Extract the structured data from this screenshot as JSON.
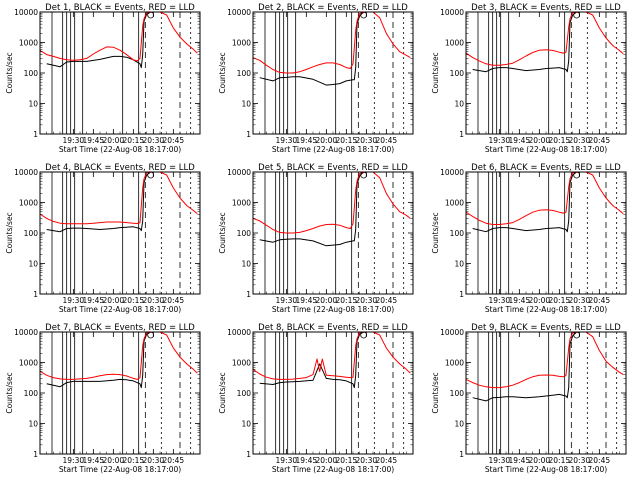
{
  "colors": {
    "events": "#000000",
    "lld": "#ff0000",
    "background": "#ffffff",
    "axes": "#000000"
  },
  "common": {
    "xlabel": "Start Time (22-Aug-08 18:17:00)",
    "ylabel": "Counts/sec",
    "x_ticks": [
      "19:30",
      "19:45",
      "20:00",
      "20:15",
      "20:30",
      "20:45"
    ],
    "y_ticks": [
      "1",
      "10",
      "100",
      "1000",
      "10000"
    ],
    "x_range_min": [
      1145,
      1265
    ],
    "y_range": [
      1,
      10000
    ],
    "y_scale": "log"
  },
  "chart_data": [
    {
      "type": "line",
      "title": "Det 1, BLACK = Events, RED = LLD",
      "series": [
        {
          "name": "Events",
          "x": [
            1150,
            1160,
            1165,
            1170,
            1175,
            1180,
            1190,
            1200,
            1205,
            1210,
            1215,
            1220,
            1221,
            1222,
            1223,
            1225,
            1228,
            1230,
            1232,
            1234
          ],
          "y": [
            200,
            160,
            230,
            240,
            240,
            240,
            280,
            350,
            350,
            330,
            270,
            200,
            150,
            400,
            5000,
            8500,
            10000,
            10000,
            10000,
            10000
          ]
        },
        {
          "name": "LLD",
          "x": [
            1145,
            1150,
            1155,
            1160,
            1165,
            1170,
            1175,
            1180,
            1185,
            1190,
            1195,
            1200,
            1205,
            1210,
            1215,
            1218,
            1220,
            1222,
            1223,
            1225,
            1230,
            1235,
            1240,
            1245,
            1250,
            1255,
            1260,
            1263
          ],
          "y": [
            550,
            400,
            350,
            300,
            270,
            260,
            270,
            300,
            420,
            560,
            720,
            700,
            560,
            400,
            270,
            250,
            300,
            3500,
            6000,
            9500,
            10000,
            10000,
            8000,
            3000,
            1500,
            900,
            600,
            450
          ]
        }
      ]
    },
    {
      "type": "line",
      "title": "Det 2, BLACK = Events, RED = LLD",
      "series": [
        {
          "name": "Events",
          "x": [
            1150,
            1160,
            1165,
            1170,
            1175,
            1180,
            1190,
            1200,
            1205,
            1210,
            1215,
            1220,
            1221,
            1222,
            1223,
            1225,
            1228,
            1230,
            1232,
            1234
          ],
          "y": [
            70,
            55,
            70,
            72,
            75,
            75,
            62,
            40,
            42,
            45,
            55,
            60,
            60,
            150,
            4000,
            7500,
            10000,
            10000,
            10000,
            10000
          ]
        },
        {
          "name": "LLD",
          "x": [
            1145,
            1150,
            1155,
            1160,
            1165,
            1170,
            1175,
            1180,
            1185,
            1190,
            1195,
            1200,
            1205,
            1210,
            1215,
            1218,
            1220,
            1222,
            1223,
            1225,
            1230,
            1235,
            1240,
            1245,
            1250,
            1255,
            1260,
            1263
          ],
          "y": [
            320,
            260,
            180,
            130,
            105,
            100,
            100,
            110,
            130,
            160,
            190,
            215,
            215,
            190,
            150,
            140,
            200,
            2500,
            5000,
            9000,
            10000,
            10000,
            6500,
            2000,
            900,
            500,
            380,
            320
          ]
        }
      ]
    },
    {
      "type": "line",
      "title": "Det 3, BLACK = Events, RED = LLD",
      "series": [
        {
          "name": "Events",
          "x": [
            1150,
            1160,
            1165,
            1170,
            1175,
            1180,
            1190,
            1200,
            1205,
            1210,
            1215,
            1220,
            1221,
            1222,
            1223,
            1225,
            1228,
            1230,
            1232,
            1234
          ],
          "y": [
            130,
            110,
            140,
            150,
            150,
            140,
            120,
            130,
            140,
            145,
            150,
            130,
            110,
            250,
            4500,
            8000,
            10000,
            10000,
            10000,
            10000
          ]
        },
        {
          "name": "LLD",
          "x": [
            1145,
            1150,
            1155,
            1160,
            1165,
            1170,
            1175,
            1180,
            1185,
            1190,
            1195,
            1200,
            1205,
            1210,
            1215,
            1218,
            1220,
            1222,
            1223,
            1225,
            1230,
            1235,
            1240,
            1245,
            1250,
            1255,
            1260,
            1263
          ],
          "y": [
            450,
            320,
            250,
            200,
            180,
            180,
            190,
            210,
            270,
            360,
            470,
            560,
            580,
            550,
            480,
            450,
            480,
            3200,
            6000,
            9500,
            10000,
            10000,
            8000,
            3000,
            1400,
            800,
            550,
            430
          ]
        }
      ]
    },
    {
      "type": "line",
      "title": "Det 4, BLACK = Events, RED = LLD",
      "series": [
        {
          "name": "Events",
          "x": [
            1150,
            1160,
            1165,
            1170,
            1175,
            1180,
            1190,
            1200,
            1205,
            1210,
            1215,
            1220,
            1221,
            1222,
            1223,
            1225,
            1228,
            1230,
            1232,
            1234
          ],
          "y": [
            130,
            110,
            140,
            145,
            145,
            140,
            130,
            140,
            150,
            155,
            160,
            140,
            120,
            250,
            4500,
            8000,
            10000,
            10000,
            10000,
            10000
          ]
        },
        {
          "name": "LLD",
          "x": [
            1145,
            1150,
            1155,
            1160,
            1165,
            1170,
            1175,
            1180,
            1185,
            1190,
            1195,
            1200,
            1205,
            1210,
            1215,
            1218,
            1220,
            1222,
            1223,
            1225,
            1230,
            1235,
            1240,
            1245,
            1250,
            1255,
            1260,
            1263
          ],
          "y": [
            420,
            300,
            240,
            210,
            200,
            200,
            200,
            200,
            210,
            220,
            230,
            230,
            230,
            220,
            210,
            205,
            220,
            3000,
            6000,
            9500,
            10000,
            10000,
            8000,
            3000,
            1400,
            800,
            550,
            430
          ]
        }
      ]
    },
    {
      "type": "line",
      "title": "Det 5, BLACK = Events, RED = LLD",
      "series": [
        {
          "name": "Events",
          "x": [
            1150,
            1160,
            1165,
            1170,
            1175,
            1180,
            1190,
            1200,
            1205,
            1210,
            1215,
            1220,
            1221,
            1222,
            1223,
            1225,
            1228,
            1230,
            1232,
            1234
          ],
          "y": [
            60,
            50,
            60,
            62,
            64,
            64,
            55,
            38,
            40,
            42,
            50,
            55,
            55,
            130,
            4000,
            7500,
            10000,
            10000,
            10000,
            10000
          ]
        },
        {
          "name": "LLD",
          "x": [
            1145,
            1150,
            1155,
            1160,
            1165,
            1170,
            1175,
            1180,
            1185,
            1190,
            1195,
            1200,
            1205,
            1210,
            1215,
            1218,
            1220,
            1222,
            1223,
            1225,
            1230,
            1235,
            1240,
            1245,
            1250,
            1255,
            1260,
            1263
          ],
          "y": [
            300,
            250,
            180,
            130,
            105,
            100,
            100,
            105,
            120,
            140,
            170,
            190,
            195,
            180,
            150,
            140,
            200,
            2500,
            5000,
            9000,
            10000,
            10000,
            6500,
            2000,
            900,
            500,
            380,
            300
          ]
        }
      ]
    },
    {
      "type": "line",
      "title": "Det 6, BLACK = Events, RED = LLD",
      "series": [
        {
          "name": "Events",
          "x": [
            1150,
            1160,
            1165,
            1170,
            1175,
            1180,
            1190,
            1200,
            1205,
            1210,
            1215,
            1220,
            1221,
            1222,
            1223,
            1225,
            1228,
            1230,
            1232,
            1234
          ],
          "y": [
            140,
            110,
            140,
            150,
            150,
            140,
            120,
            130,
            140,
            145,
            150,
            130,
            110,
            250,
            4500,
            8000,
            10000,
            10000,
            10000,
            10000
          ]
        },
        {
          "name": "LLD",
          "x": [
            1145,
            1150,
            1155,
            1160,
            1165,
            1170,
            1175,
            1180,
            1185,
            1190,
            1195,
            1200,
            1205,
            1210,
            1215,
            1218,
            1220,
            1222,
            1223,
            1225,
            1230,
            1235,
            1240,
            1245,
            1250,
            1255,
            1260,
            1263
          ],
          "y": [
            480,
            350,
            260,
            210,
            190,
            190,
            200,
            220,
            280,
            370,
            480,
            560,
            580,
            550,
            480,
            450,
            480,
            3200,
            6000,
            9500,
            10000,
            10000,
            8000,
            3000,
            1400,
            800,
            550,
            430
          ]
        }
      ]
    },
    {
      "type": "line",
      "title": "Det 7, BLACK = Events, RED = LLD",
      "series": [
        {
          "name": "Events",
          "x": [
            1150,
            1160,
            1165,
            1170,
            1175,
            1180,
            1190,
            1200,
            1205,
            1210,
            1215,
            1220,
            1221,
            1222,
            1223,
            1225,
            1228,
            1230,
            1232,
            1234
          ],
          "y": [
            200,
            160,
            220,
            240,
            240,
            240,
            240,
            260,
            280,
            270,
            250,
            200,
            150,
            380,
            5000,
            8500,
            10000,
            10000,
            10000,
            10000
          ]
        },
        {
          "name": "LLD",
          "x": [
            1145,
            1150,
            1155,
            1160,
            1165,
            1170,
            1175,
            1180,
            1185,
            1190,
            1195,
            1200,
            1205,
            1210,
            1215,
            1218,
            1220,
            1222,
            1223,
            1225,
            1230,
            1235,
            1240,
            1245,
            1250,
            1255,
            1260,
            1263
          ],
          "y": [
            520,
            380,
            320,
            290,
            280,
            280,
            290,
            300,
            330,
            370,
            400,
            410,
            400,
            360,
            300,
            280,
            320,
            3500,
            6000,
            9500,
            10000,
            10000,
            8000,
            3000,
            1500,
            900,
            600,
            450
          ]
        }
      ]
    },
    {
      "type": "line",
      "title": "Det 8, BLACK = Events, RED = LLD",
      "series": [
        {
          "name": "Events",
          "x": [
            1150,
            1160,
            1165,
            1170,
            1175,
            1180,
            1190,
            1195,
            1200,
            1205,
            1210,
            1215,
            1220,
            1221,
            1222,
            1223,
            1225,
            1228,
            1230,
            1232,
            1234
          ],
          "y": [
            210,
            190,
            220,
            230,
            235,
            240,
            260,
            900,
            300,
            280,
            270,
            250,
            200,
            150,
            380,
            5000,
            8500,
            10000,
            10000,
            10000,
            10000
          ]
        },
        {
          "name": "LLD",
          "x": [
            1145,
            1150,
            1155,
            1160,
            1165,
            1170,
            1175,
            1180,
            1185,
            1190,
            1193,
            1195,
            1197,
            1200,
            1205,
            1210,
            1215,
            1218,
            1220,
            1222,
            1223,
            1225,
            1230,
            1235,
            1240,
            1245,
            1250,
            1255,
            1260,
            1263
          ],
          "y": [
            600,
            420,
            330,
            290,
            280,
            280,
            285,
            300,
            320,
            400,
            1300,
            500,
            1300,
            380,
            370,
            350,
            330,
            320,
            330,
            3500,
            6000,
            9500,
            10000,
            10000,
            8000,
            3000,
            1500,
            900,
            600,
            450
          ]
        }
      ]
    },
    {
      "type": "line",
      "title": "Det 9, BLACK = Events, RED = LLD",
      "series": [
        {
          "name": "Events",
          "x": [
            1150,
            1160,
            1165,
            1170,
            1175,
            1180,
            1190,
            1200,
            1205,
            1210,
            1215,
            1220,
            1221,
            1222,
            1223,
            1225,
            1228,
            1230,
            1232,
            1234
          ],
          "y": [
            70,
            55,
            70,
            72,
            75,
            75,
            70,
            75,
            80,
            85,
            90,
            80,
            70,
            150,
            4000,
            7500,
            10000,
            10000,
            10000,
            10000
          ]
        },
        {
          "name": "LLD",
          "x": [
            1145,
            1150,
            1155,
            1160,
            1165,
            1170,
            1175,
            1180,
            1185,
            1190,
            1195,
            1200,
            1205,
            1210,
            1215,
            1218,
            1220,
            1222,
            1223,
            1225,
            1230,
            1235,
            1240,
            1245,
            1250,
            1255,
            1260,
            1263
          ],
          "y": [
            280,
            220,
            180,
            160,
            150,
            150,
            160,
            180,
            220,
            280,
            340,
            380,
            390,
            380,
            350,
            340,
            380,
            3000,
            6000,
            9500,
            10000,
            10000,
            7000,
            2500,
            1100,
            700,
            480,
            400
          ]
        }
      ]
    }
  ]
}
